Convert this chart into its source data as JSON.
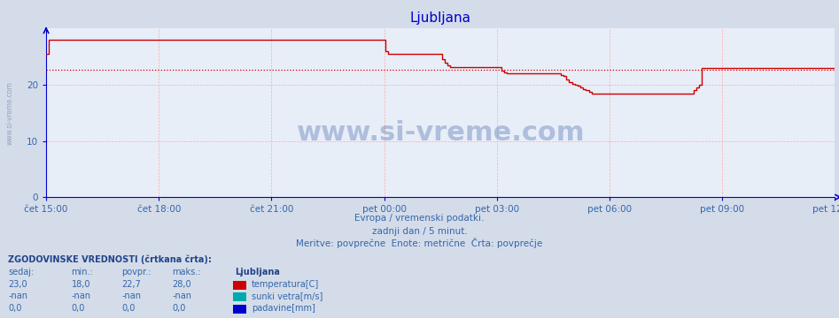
{
  "title": "Ljubljana",
  "background_color": "#d4dcea",
  "plot_bg_color": "#e8eef8",
  "grid_color": "#ffaaaa",
  "axis_color": "#0000cc",
  "title_color": "#0000cc",
  "text_color": "#3366aa",
  "bold_text_color": "#224488",
  "watermark_side": "www.si-vreme.com",
  "watermark_center": "www.si-vreme.com",
  "subtitle1": "Evropa / vremenski podatki.",
  "subtitle2": "zadnji dan / 5 minut.",
  "subtitle3": "Meritve: povprečne  Enote: metrične  Črta: povprečje",
  "ylim": [
    0,
    30
  ],
  "yticks": [
    0,
    10,
    20
  ],
  "temp_color": "#cc0000",
  "avg_color": "#cc0000",
  "xtick_labels": [
    "čet 15:00",
    "čet 18:00",
    "čet 21:00",
    "pet 00:00",
    "pet 03:00",
    "pet 06:00",
    "pet 09:00",
    "pet 12:00"
  ],
  "legend_title": "Ljubljana",
  "legend_entries": [
    "temperatura[C]",
    "sunki vetra[m/s]",
    "padavine[mm]"
  ],
  "legend_colors": [
    "#cc0000",
    "#00aaaa",
    "#0000cc"
  ],
  "stats_header": "ZGODOVINSKE VREDNOSTI (črtkana črta):",
  "stats_cols": [
    "sedaj:",
    "min.:",
    "povpr.:",
    "maks.:"
  ],
  "stats_rows": [
    [
      "23,0",
      "18,0",
      "22,7",
      "28,0"
    ],
    [
      "-nan",
      "-nan",
      "-nan",
      "-nan"
    ],
    [
      "0,0",
      "0,0",
      "0,0",
      "0,0"
    ]
  ],
  "avg_value": 22.7,
  "temp_data": [
    25.5,
    28.0,
    28.0,
    28.0,
    28.0,
    28.0,
    28.0,
    28.0,
    28.0,
    28.0,
    28.0,
    28.0,
    28.0,
    28.0,
    28.0,
    28.0,
    28.0,
    28.0,
    28.0,
    28.0,
    28.0,
    28.0,
    28.0,
    28.0,
    28.0,
    28.0,
    28.0,
    28.0,
    28.0,
    28.0,
    28.0,
    28.0,
    28.0,
    28.0,
    28.0,
    28.0,
    28.0,
    28.0,
    28.0,
    28.0,
    28.0,
    28.0,
    28.0,
    28.0,
    28.0,
    28.0,
    28.0,
    28.0,
    28.0,
    28.0,
    28.0,
    28.0,
    28.0,
    28.0,
    28.0,
    28.0,
    28.0,
    28.0,
    28.0,
    28.0,
    28.0,
    28.0,
    28.0,
    28.0,
    28.0,
    28.0,
    28.0,
    28.0,
    28.0,
    28.0,
    28.0,
    28.0,
    28.0,
    28.0,
    28.0,
    28.0,
    28.0,
    28.0,
    28.0,
    28.0,
    28.0,
    28.0,
    28.0,
    28.0,
    28.0,
    28.0,
    28.0,
    28.0,
    28.0,
    28.0,
    28.0,
    28.0,
    28.0,
    28.0,
    28.0,
    28.0,
    28.0,
    28.0,
    28.0,
    28.0,
    28.0,
    28.0,
    28.0,
    28.0,
    28.0,
    28.0,
    28.0,
    28.0,
    28.0,
    28.0,
    28.0,
    28.0,
    28.0,
    28.0,
    28.0,
    28.0,
    28.0,
    28.0,
    28.0,
    28.0,
    26.0,
    25.5,
    25.5,
    25.5,
    25.5,
    25.5,
    25.5,
    25.5,
    25.5,
    25.5,
    25.5,
    25.5,
    25.5,
    25.5,
    25.5,
    25.5,
    25.5,
    25.5,
    25.5,
    25.5,
    24.5,
    24.0,
    23.5,
    23.2,
    23.2,
    23.2,
    23.2,
    23.2,
    23.2,
    23.2,
    23.2,
    23.2,
    23.2,
    23.2,
    23.2,
    23.2,
    23.2,
    23.2,
    23.2,
    23.2,
    23.2,
    22.5,
    22.2,
    22.0,
    22.0,
    22.0,
    22.0,
    22.0,
    22.0,
    22.0,
    22.0,
    22.0,
    22.0,
    22.0,
    22.0,
    22.0,
    22.0,
    22.0,
    22.0,
    22.0,
    22.0,
    22.0,
    21.8,
    21.5,
    21.0,
    20.5,
    20.2,
    20.0,
    19.8,
    19.5,
    19.2,
    19.0,
    18.8,
    18.5,
    18.5,
    18.5,
    18.5,
    18.5,
    18.5,
    18.5,
    18.5,
    18.5,
    18.5,
    18.5,
    18.5,
    18.5,
    18.5,
    18.5,
    18.5,
    18.5,
    18.5,
    18.5,
    18.5,
    18.5,
    18.5,
    18.5,
    18.5,
    18.5,
    18.5,
    18.5,
    18.5,
    18.5,
    18.5,
    18.5,
    18.5,
    18.5,
    18.5,
    18.5,
    18.5,
    19.0,
    19.5,
    20.0,
    23.0,
    23.0,
    23.0,
    23.0,
    23.0,
    23.0,
    23.0,
    23.0,
    23.0,
    23.0,
    23.0,
    23.0,
    23.0,
    23.0,
    23.0,
    23.0,
    23.0,
    23.0,
    23.0,
    23.0,
    23.0,
    23.0,
    23.0,
    23.0,
    23.0,
    23.0,
    23.0,
    23.0,
    23.0,
    23.0,
    23.0,
    23.0,
    23.0,
    23.0,
    23.0,
    23.0,
    23.0,
    23.0,
    23.0,
    23.0,
    23.0,
    23.0,
    23.0,
    23.0,
    23.0,
    23.0,
    23.0,
    23.0
  ]
}
